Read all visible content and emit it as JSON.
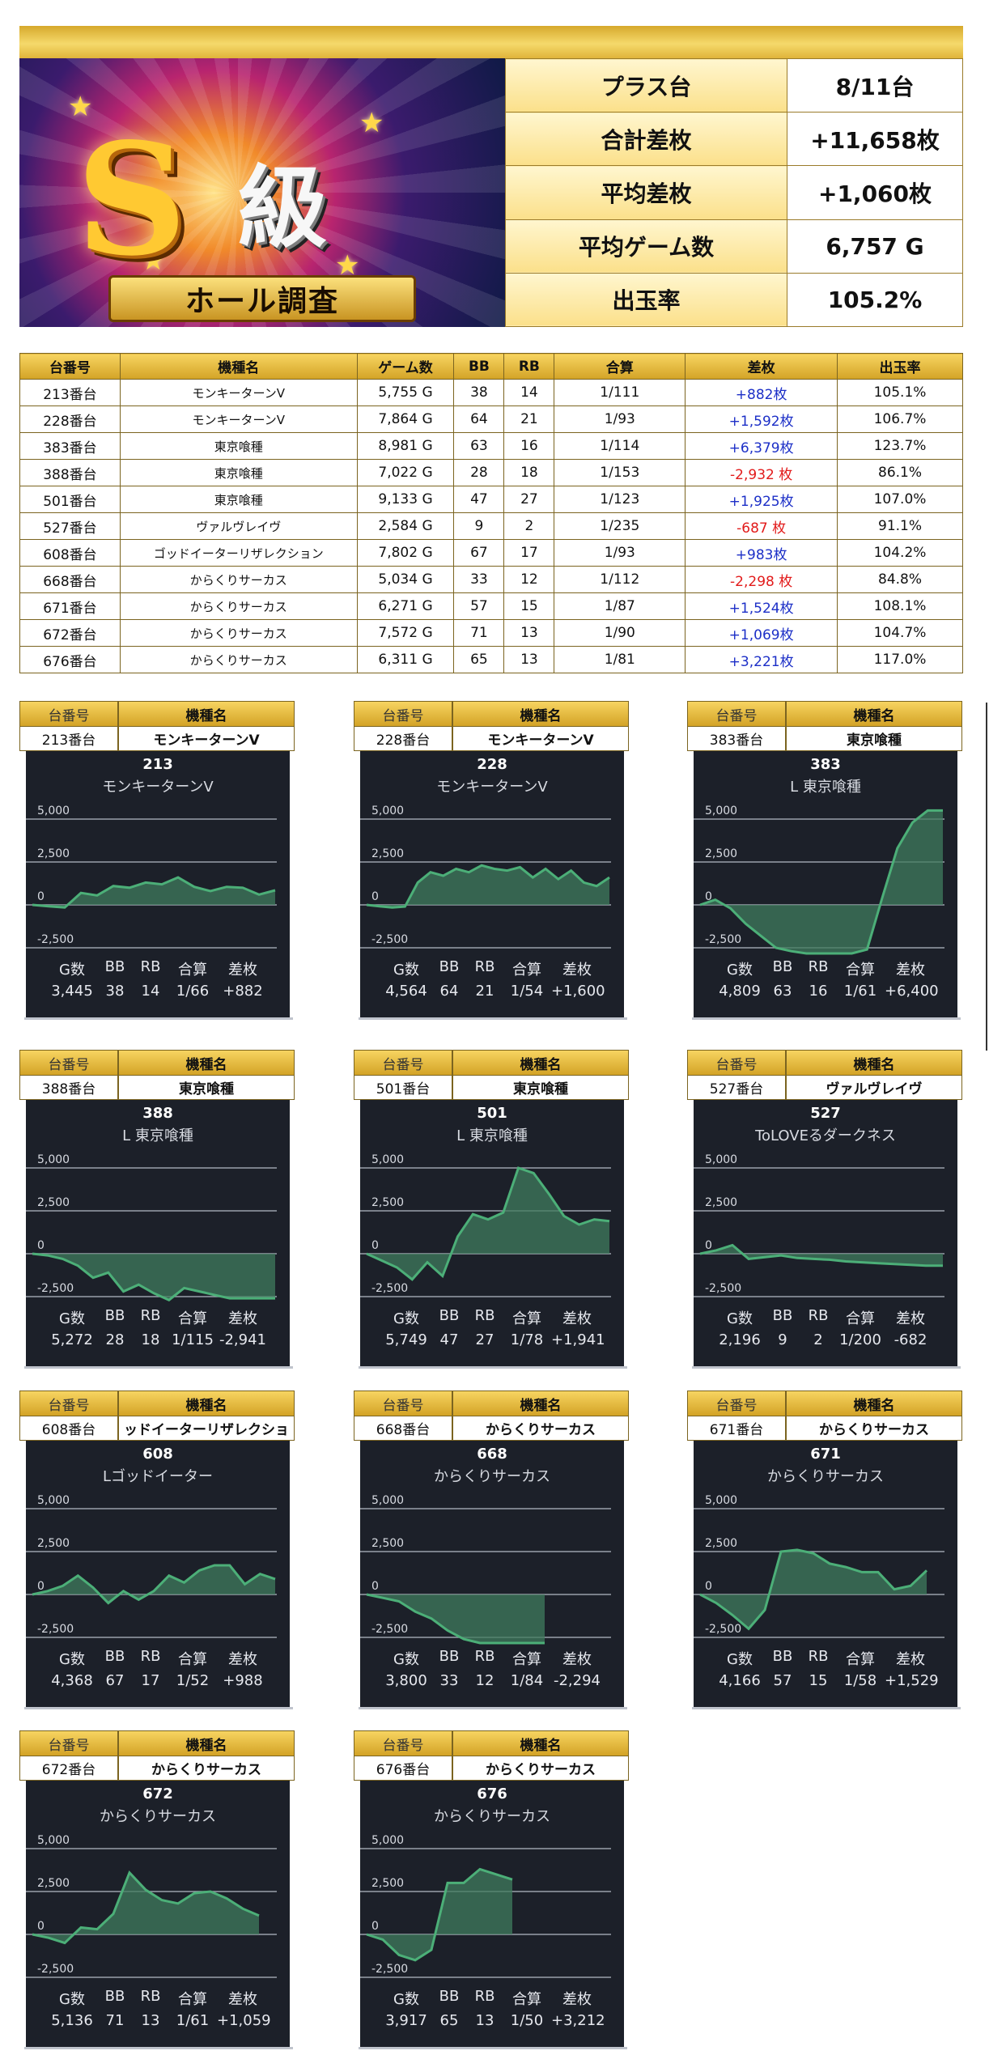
{
  "logo": {
    "s_char": "S",
    "kyu_char": "級",
    "ribbon": "ホール調査"
  },
  "summary": [
    {
      "label": "プラス台",
      "value": "8/11台"
    },
    {
      "label": "合計差枚",
      "value": "+11,658枚"
    },
    {
      "label": "平均差枚",
      "value": "+1,060枚"
    },
    {
      "label": "平均ゲーム数",
      "value": "6,757 G"
    },
    {
      "label": "出玉率",
      "value": "105.2%"
    }
  ],
  "detail": {
    "headers": [
      "台番号",
      "機種名",
      "ゲーム数",
      "BB",
      "RB",
      "合算",
      "差枚",
      "出玉率"
    ],
    "rows": [
      {
        "no": "213番台",
        "name": "モンキーターンV",
        "games": "5,755 G",
        "bb": "38",
        "rb": "14",
        "total": "1/111",
        "diff": "+882枚",
        "rate": "105.1%",
        "sign": "pos"
      },
      {
        "no": "228番台",
        "name": "モンキーターンV",
        "games": "7,864 G",
        "bb": "64",
        "rb": "21",
        "total": "1/93",
        "diff": "+1,592枚",
        "rate": "106.7%",
        "sign": "pos"
      },
      {
        "no": "383番台",
        "name": "東京喰種",
        "games": "8,981 G",
        "bb": "63",
        "rb": "16",
        "total": "1/114",
        "diff": "+6,379枚",
        "rate": "123.7%",
        "sign": "pos"
      },
      {
        "no": "388番台",
        "name": "東京喰種",
        "games": "7,022 G",
        "bb": "28",
        "rb": "18",
        "total": "1/153",
        "diff": "-2,932 枚",
        "rate": "86.1%",
        "sign": "neg"
      },
      {
        "no": "501番台",
        "name": "東京喰種",
        "games": "9,133 G",
        "bb": "47",
        "rb": "27",
        "total": "1/123",
        "diff": "+1,925枚",
        "rate": "107.0%",
        "sign": "pos"
      },
      {
        "no": "527番台",
        "name": "ヴァルヴレイヴ",
        "games": "2,584 G",
        "bb": "9",
        "rb": "2",
        "total": "1/235",
        "diff": "-687 枚",
        "rate": "91.1%",
        "sign": "neg"
      },
      {
        "no": "608番台",
        "name": "ゴッドイーターリザレクション",
        "games": "7,802 G",
        "bb": "67",
        "rb": "17",
        "total": "1/93",
        "diff": "+983枚",
        "rate": "104.2%",
        "sign": "pos"
      },
      {
        "no": "668番台",
        "name": "からくりサーカス",
        "games": "5,034 G",
        "bb": "33",
        "rb": "12",
        "total": "1/112",
        "diff": "-2,298 枚",
        "rate": "84.8%",
        "sign": "neg"
      },
      {
        "no": "671番台",
        "name": "からくりサーカス",
        "games": "6,271 G",
        "bb": "57",
        "rb": "15",
        "total": "1/87",
        "diff": "+1,524枚",
        "rate": "108.1%",
        "sign": "pos"
      },
      {
        "no": "672番台",
        "name": "からくりサーカス",
        "games": "7,572 G",
        "bb": "71",
        "rb": "13",
        "total": "1/90",
        "diff": "+1,069枚",
        "rate": "104.7%",
        "sign": "pos"
      },
      {
        "no": "676番台",
        "name": "からくりサーカス",
        "games": "6,311 G",
        "bb": "65",
        "rb": "13",
        "total": "1/81",
        "diff": "+3,221枚",
        "rate": "117.0%",
        "sign": "pos"
      }
    ]
  },
  "card_headers": {
    "no": "台番号",
    "name": "機種名"
  },
  "card_stat_labels": [
    "G数",
    "BB",
    "RB",
    "合算",
    "差枚"
  ],
  "card_y_ticks": [
    "5,000",
    "2,500",
    "0",
    "-2,500"
  ],
  "colors": {
    "line": "#4caf78",
    "fill": "#3f7b5d",
    "panel": "#1c2029",
    "gold": "#e0b43a"
  },
  "cards": [
    {
      "no": "213番台",
      "name": "モンキーターンV",
      "num": "213",
      "title": "モンキーターンV",
      "stats": [
        "3,445",
        "38",
        "14",
        "1/66",
        "+882"
      ],
      "series": [
        0,
        -80,
        -150,
        700,
        550,
        1100,
        1000,
        1300,
        1200,
        1600,
        1050,
        800,
        1050,
        1000,
        600,
        850
      ]
    },
    {
      "no": "228番台",
      "name": "モンキーターンV",
      "num": "228",
      "title": "モンキーターンV",
      "stats": [
        "4,564",
        "64",
        "21",
        "1/54",
        "+1,600"
      ],
      "series": [
        0,
        -80,
        -150,
        -100,
        1300,
        1900,
        1700,
        2100,
        1900,
        2300,
        2100,
        2000,
        2200,
        1600,
        2100,
        1500,
        2000,
        1300,
        1100,
        1600
      ]
    },
    {
      "no": "383番台",
      "name": "東京喰種",
      "num": "383",
      "title": "L 東京喰種",
      "stats": [
        "4,809",
        "63",
        "16",
        "1/61",
        "+6,400"
      ],
      "series": [
        0,
        300,
        -200,
        -1100,
        -1800,
        -2500,
        -2700,
        -3200,
        -3300,
        -3300,
        -3300,
        -2600,
        400,
        3300,
        4800,
        5500,
        5500
      ]
    },
    {
      "no": "388番台",
      "name": "東京喰種",
      "num": "388",
      "title": "L 東京喰種",
      "stats": [
        "5,272",
        "28",
        "18",
        "1/115",
        "-2,941"
      ],
      "series": [
        0,
        -100,
        -300,
        -700,
        -1400,
        -1100,
        -2200,
        -1800,
        -2300,
        -2700,
        -2000,
        -2200,
        -2400,
        -2600,
        -2600,
        -2600,
        -2600
      ]
    },
    {
      "no": "501番台",
      "name": "東京喰種",
      "num": "501",
      "title": "L 東京喰種",
      "stats": [
        "5,749",
        "47",
        "27",
        "1/78",
        "+1,941"
      ],
      "series": [
        0,
        -400,
        -800,
        -1500,
        -500,
        -1300,
        1000,
        2300,
        2000,
        2400,
        5000,
        4700,
        3500,
        2200,
        1700,
        2000,
        1900
      ]
    },
    {
      "no": "527番台",
      "name": "ヴァルヴレイヴ",
      "num": "527",
      "title": "ToLOVEるダークネス",
      "stats": [
        "2,196",
        "9",
        "2",
        "1/200",
        "-682"
      ],
      "series": [
        0,
        200,
        500,
        -300,
        -200,
        -100,
        -250,
        -300,
        -350,
        -450,
        -500,
        -550,
        -600,
        -650,
        -700,
        -700
      ]
    },
    {
      "no": "608番台",
      "name": "ッドイーターリザレクショ",
      "num": "608",
      "title": "Lゴッドイーター",
      "stats": [
        "4,368",
        "67",
        "17",
        "1/52",
        "+988"
      ],
      "series": [
        0,
        200,
        500,
        1100,
        400,
        -500,
        200,
        -300,
        200,
        1100,
        700,
        1400,
        1700,
        1700,
        600,
        1200,
        900
      ]
    },
    {
      "no": "668番台",
      "name": "からくりサーカス",
      "num": "668",
      "title": "からくりサーカス",
      "stats": [
        "3,800",
        "33",
        "12",
        "1/84",
        "-2,294"
      ],
      "series": [
        0,
        -200,
        -400,
        -1000,
        -1400,
        -2100,
        -2600,
        -2900,
        -3000,
        -3000,
        -3000,
        -3000
      ]
    },
    {
      "no": "671番台",
      "name": "からくりサーカス",
      "num": "671",
      "title": "からくりサーカス",
      "stats": [
        "4,166",
        "57",
        "15",
        "1/58",
        "+1,529"
      ],
      "series": [
        0,
        -500,
        -1200,
        -2000,
        -900,
        2500,
        2600,
        2400,
        1800,
        1600,
        1300,
        1300,
        300,
        500,
        1400
      ]
    },
    {
      "no": "672番台",
      "name": "からくりサーカス",
      "num": "672",
      "title": "からくりサーカス",
      "stats": [
        "5,136",
        "71",
        "13",
        "1/61",
        "+1,059"
      ],
      "series": [
        0,
        -200,
        -500,
        400,
        300,
        1200,
        3600,
        2600,
        2000,
        1800,
        2400,
        2500,
        2100,
        1500,
        1100
      ]
    },
    {
      "no": "676番台",
      "name": "からくりサーカス",
      "num": "676",
      "title": "からくりサーカス",
      "stats": [
        "3,917",
        "65",
        "13",
        "1/50",
        "+3,212"
      ],
      "series": [
        0,
        -300,
        -1200,
        -1500,
        -900,
        3000,
        3000,
        3800,
        3500,
        3200
      ]
    }
  ]
}
